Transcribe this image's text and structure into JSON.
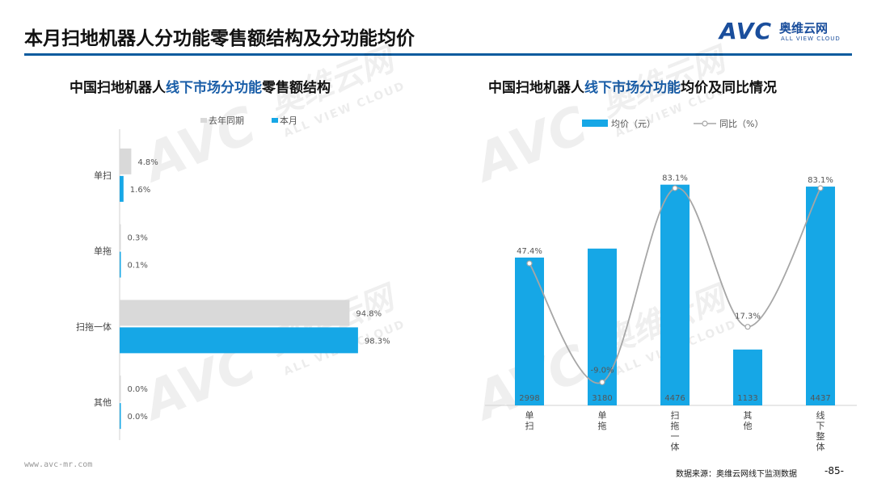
{
  "header": {
    "title": "本月扫地机器人分功能零售额结构及分功能均价",
    "logo_mark": "AVC",
    "logo_cn": "奥维云网",
    "logo_en": "ALL VIEW CLOUD"
  },
  "left_chart": {
    "title_prefix": "中国扫地机器人",
    "title_highlight": "线下市场分功能",
    "title_suffix": "零售额结构"
  },
  "right_chart": {
    "title_prefix": "中国扫地机器人",
    "title_highlight": "线下市场分功能",
    "title_suffix": "均价及同比情况"
  },
  "chart_data": [
    {
      "type": "bar",
      "orientation": "horizontal",
      "categories": [
        "单扫",
        "单拖",
        "扫拖一体",
        "其他"
      ],
      "series": [
        {
          "name": "去年同期",
          "values": [
            4.8,
            0.3,
            94.8,
            0.0
          ],
          "labels": [
            "4.8%",
            "0.3%",
            "94.8%",
            "0.0%"
          ],
          "color": "#d9d9d9"
        },
        {
          "name": "本月",
          "values": [
            1.6,
            0.1,
            98.3,
            0.0
          ],
          "labels": [
            "1.6%",
            "0.1%",
            "98.3%",
            "0.0%"
          ],
          "color": "#16a7e6"
        }
      ],
      "xlim": [
        0,
        100
      ],
      "legend_position": "top",
      "grid": false
    },
    {
      "type": "bar+line",
      "categories": [
        "单扫",
        "单拖",
        "扫拖一体",
        "其他",
        "线下整体"
      ],
      "series": [
        {
          "name": "均价（元）",
          "type": "bar",
          "values": [
            2998,
            3180,
            4476,
            1133,
            4437
          ],
          "color": "#16a7e6"
        },
        {
          "name": "同比（%）",
          "type": "line",
          "values": [
            47.4,
            -9.0,
            83.1,
            17.3,
            83.1
          ],
          "labels": [
            "47.4%",
            "-9.0%",
            "83.1%",
            "17.3%",
            "83.1%"
          ],
          "color": "#a6a6a6"
        }
      ],
      "bar_ylim": [
        0,
        4700
      ],
      "line_ylim": [
        -20,
        90
      ],
      "legend_position": "top",
      "grid": false
    }
  ],
  "watermark": {
    "mark": "AVC",
    "sub": "ALL VIEW CLOUD",
    "cn": "奥维云网"
  },
  "footer": {
    "url": "www.avc-mr.com",
    "source": "数据来源：奥维云网线下监测数据",
    "page": "-85-"
  }
}
